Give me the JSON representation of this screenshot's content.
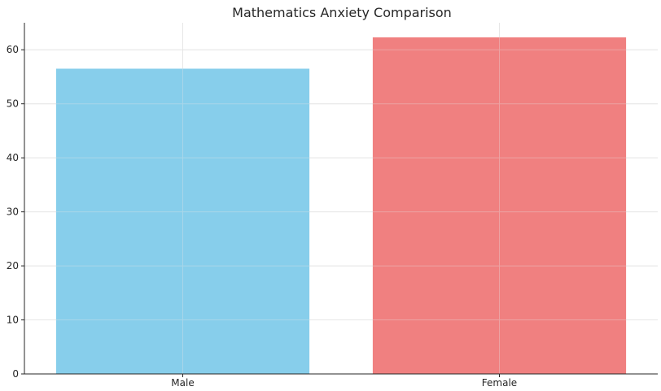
{
  "chart_data": {
    "type": "bar",
    "title": "Mathematics Anxiety Comparison",
    "xlabel": "",
    "ylabel": "",
    "categories": [
      "Male",
      "Female"
    ],
    "values": [
      56.5,
      62.3
    ],
    "colors": [
      "#87ceeb",
      "#f08080"
    ],
    "ylim": [
      0,
      65
    ],
    "yticks": [
      0,
      10,
      20,
      30,
      40,
      50,
      60
    ],
    "grid": true,
    "legend": "none"
  }
}
